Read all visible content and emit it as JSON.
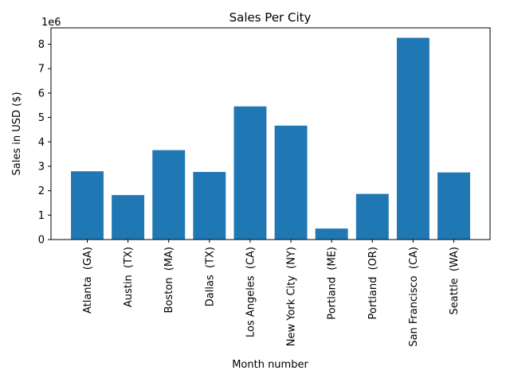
{
  "chart_data": {
    "type": "bar",
    "title": "Sales Per City",
    "xlabel": "Month number",
    "ylabel": "Sales in USD ($)",
    "y_offset_label": "1e6",
    "categories": [
      "Atlanta  (GA)",
      "Austin  (TX)",
      "Boston  (MA)",
      "Dallas  (TX)",
      "Los Angeles  (CA)",
      "New York City  (NY)",
      "Portland  (ME)",
      "Portland  (OR)",
      "San Francisco  (CA)",
      "Seattle  (WA)"
    ],
    "values": [
      2795000,
      1820000,
      3662000,
      2768000,
      5452000,
      4665000,
      450000,
      1870000,
      8262000,
      2748000
    ],
    "ylim": [
      0,
      8670000
    ],
    "yticks": [
      0,
      1,
      2,
      3,
      4,
      5,
      6,
      7,
      8
    ],
    "y_tick_scale": 1000000,
    "bar_color": "#1f77b4",
    "grid": false,
    "legend": "none"
  }
}
